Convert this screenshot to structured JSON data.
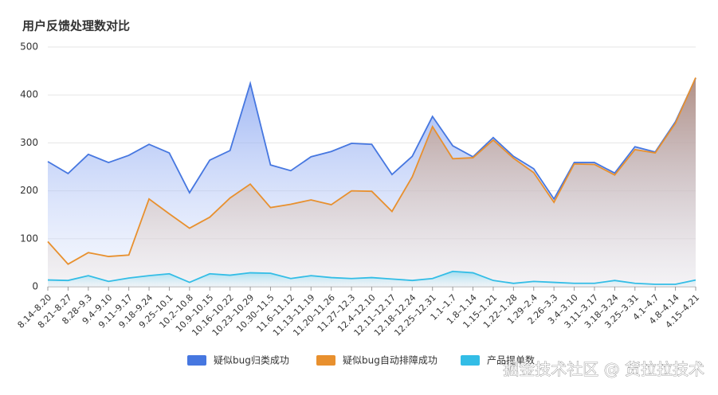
{
  "chart_data": {
    "type": "area",
    "title": "用户反馈处理数对比",
    "categories": [
      "8.14–8.20",
      "8.21–8.27",
      "8.28–9.3",
      "9.4–9.10",
      "9.11–9.17",
      "9.18–9.24",
      "9.25–10.1",
      "10.2–10.8",
      "10.9–10.15",
      "10.16–10.22",
      "10.23–10.29",
      "10.30–11.5",
      "11.6–11.12",
      "11.13–11.19",
      "11.20–11.26",
      "11.27–12.3",
      "12.4–12.10",
      "12.11–12.17",
      "12.18–12.24",
      "12.25–12.31",
      "1.1–1.7",
      "1.8–1.14",
      "1.15–1.21",
      "1.22–1.28",
      "1.29–2.4",
      "2.26–3.3",
      "3.4–3.10",
      "3.11–3.17",
      "3.18–3.24",
      "3.25–3.31",
      "4.1–4.7",
      "4.8–4.14",
      "4.15–4.21"
    ],
    "series": [
      {
        "name": "疑似bug归类成功",
        "color": "#4677e0",
        "values": [
          261,
          236,
          276,
          259,
          274,
          297,
          279,
          196,
          264,
          284,
          424,
          254,
          242,
          271,
          282,
          299,
          297,
          234,
          272,
          355,
          294,
          271,
          311,
          272,
          246,
          183,
          259,
          259,
          237,
          292,
          281,
          344,
          435
        ]
      },
      {
        "name": "疑似bug自动排障成功",
        "color": "#e8902e",
        "values": [
          94,
          47,
          71,
          63,
          66,
          183,
          152,
          122,
          145,
          185,
          214,
          165,
          172,
          181,
          171,
          200,
          199,
          157,
          229,
          334,
          267,
          269,
          306,
          268,
          238,
          176,
          256,
          255,
          233,
          286,
          279,
          341,
          436
        ]
      },
      {
        "name": "产品提单数",
        "color": "#33bde6",
        "values": [
          14,
          13,
          23,
          11,
          18,
          23,
          27,
          9,
          27,
          24,
          29,
          28,
          17,
          23,
          19,
          17,
          19,
          16,
          13,
          17,
          32,
          29,
          13,
          7,
          11,
          9,
          7,
          7,
          13,
          7,
          5,
          5,
          14
        ]
      }
    ],
    "ylim": [
      0,
      500
    ],
    "yticks": [
      0,
      100,
      200,
      300,
      400,
      500
    ],
    "grid": true,
    "legend": "bottom",
    "watermark": "掘金技术社区 @ 货拉拉技术"
  }
}
